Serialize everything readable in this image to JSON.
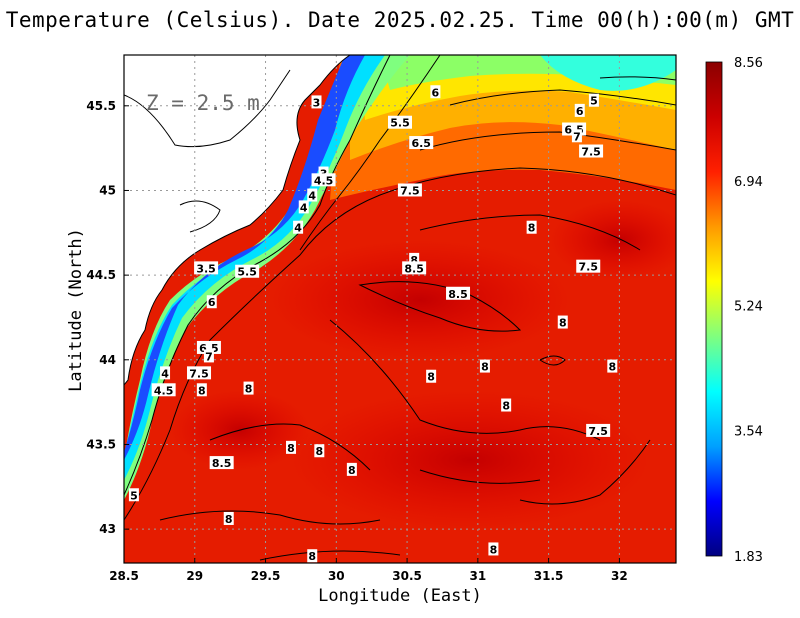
{
  "title": "Temperature (Celsius). Date 2025.02.25. Time 00(h):00(m) GMT",
  "depth_label": "Z = 2.5 m",
  "xlabel": "Longitude (East)",
  "ylabel": "Latitude (North)",
  "colors": {
    "colormap": [
      "#000080",
      "#0000ff",
      "#00a0ff",
      "#00ffff",
      "#7fff7f",
      "#ffff00",
      "#ff9900",
      "#ff2000",
      "#cc0000",
      "#8b0000"
    ],
    "land": "#ffffff",
    "contour": "#000000",
    "grid": "#9a9a9a"
  },
  "chart_data": {
    "type": "heatmap",
    "variable": "Temperature",
    "units": "Celsius",
    "xlim": [
      28.5,
      32.4
    ],
    "ylim": [
      42.8,
      45.8
    ],
    "x_ticks": [
      "28.5",
      "29",
      "29.5",
      "30",
      "30.5",
      "31",
      "31.5",
      "32"
    ],
    "y_ticks": [
      "43",
      "43.5",
      "44",
      "44.5",
      "45",
      "45.5"
    ],
    "colorbar": {
      "min": 1.83,
      "max": 8.56,
      "labels": [
        "8.56",
        "6.94",
        "5.24",
        "3.54",
        "1.83"
      ]
    },
    "grid": true,
    "contour_labels": [
      {
        "text": "6",
        "lon": 30.7,
        "lat": 45.58
      },
      {
        "text": "5",
        "lon": 31.82,
        "lat": 45.53
      },
      {
        "text": "6",
        "lon": 31.72,
        "lat": 45.47
      },
      {
        "text": "5.5",
        "lon": 30.45,
        "lat": 45.4
      },
      {
        "text": "6.5",
        "lon": 31.68,
        "lat": 45.36
      },
      {
        "text": "7",
        "lon": 31.7,
        "lat": 45.32
      },
      {
        "text": "6.5",
        "lon": 30.6,
        "lat": 45.28
      },
      {
        "text": "7.5",
        "lon": 31.8,
        "lat": 45.23
      },
      {
        "text": "3",
        "lon": 29.86,
        "lat": 45.52
      },
      {
        "text": "3",
        "lon": 29.91,
        "lat": 45.1
      },
      {
        "text": "4.5",
        "lon": 29.91,
        "lat": 45.06
      },
      {
        "text": "7.5",
        "lon": 30.52,
        "lat": 45.0
      },
      {
        "text": "4",
        "lon": 29.83,
        "lat": 44.97
      },
      {
        "text": "4",
        "lon": 29.77,
        "lat": 44.9
      },
      {
        "text": "4",
        "lon": 29.73,
        "lat": 44.78
      },
      {
        "text": "8",
        "lon": 31.38,
        "lat": 44.78
      },
      {
        "text": "8",
        "lon": 30.55,
        "lat": 44.59
      },
      {
        "text": "8.5",
        "lon": 30.55,
        "lat": 44.54
      },
      {
        "text": "7.5",
        "lon": 31.78,
        "lat": 44.55
      },
      {
        "text": "3.5",
        "lon": 29.08,
        "lat": 44.54
      },
      {
        "text": "5.5",
        "lon": 29.37,
        "lat": 44.52
      },
      {
        "text": "8.5",
        "lon": 30.86,
        "lat": 44.39
      },
      {
        "text": "6",
        "lon": 29.12,
        "lat": 44.34
      },
      {
        "text": "8",
        "lon": 31.6,
        "lat": 44.22
      },
      {
        "text": "6.5",
        "lon": 29.1,
        "lat": 44.07
      },
      {
        "text": "7",
        "lon": 29.1,
        "lat": 44.02
      },
      {
        "text": "8",
        "lon": 31.05,
        "lat": 43.96
      },
      {
        "text": "8",
        "lon": 31.95,
        "lat": 43.96
      },
      {
        "text": "4",
        "lon": 28.79,
        "lat": 43.92
      },
      {
        "text": "7.5",
        "lon": 29.03,
        "lat": 43.92
      },
      {
        "text": "8",
        "lon": 30.67,
        "lat": 43.9
      },
      {
        "text": "8",
        "lon": 29.38,
        "lat": 43.83
      },
      {
        "text": "4.5",
        "lon": 28.78,
        "lat": 43.82
      },
      {
        "text": "8",
        "lon": 29.05,
        "lat": 43.82
      },
      {
        "text": "8",
        "lon": 31.2,
        "lat": 43.73
      },
      {
        "text": "7.5",
        "lon": 31.85,
        "lat": 43.58
      },
      {
        "text": "8",
        "lon": 29.68,
        "lat": 43.48
      },
      {
        "text": "8",
        "lon": 29.88,
        "lat": 43.46
      },
      {
        "text": "8.5",
        "lon": 29.19,
        "lat": 43.39
      },
      {
        "text": "8",
        "lon": 30.11,
        "lat": 43.35
      },
      {
        "text": "5",
        "lon": 28.57,
        "lat": 43.2
      },
      {
        "text": "8",
        "lon": 29.24,
        "lat": 43.06
      },
      {
        "text": "8",
        "lon": 31.11,
        "lat": 42.88
      },
      {
        "text": "8",
        "lon": 29.83,
        "lat": 42.84
      }
    ]
  }
}
